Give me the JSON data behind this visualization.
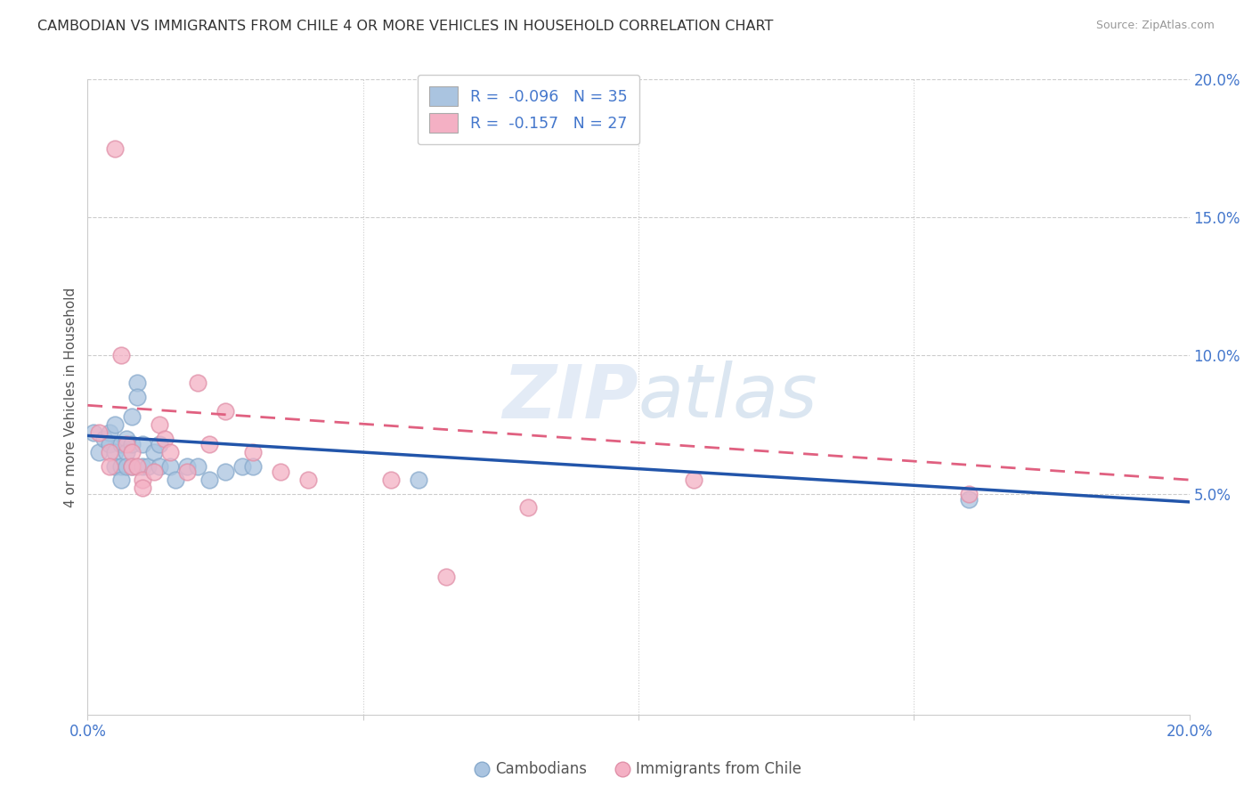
{
  "title": "CAMBODIAN VS IMMIGRANTS FROM CHILE 4 OR MORE VEHICLES IN HOUSEHOLD CORRELATION CHART",
  "source": "Source: ZipAtlas.com",
  "ylabel": "4 or more Vehicles in Household",
  "xlim": [
    0.0,
    0.2
  ],
  "ylim": [
    -0.03,
    0.2
  ],
  "xticks": [
    0.0,
    0.05,
    0.1,
    0.15,
    0.2
  ],
  "xticklabels": [
    "0.0%",
    "",
    "",
    "",
    "20.0%"
  ],
  "right_yticks": [
    0.05,
    0.1,
    0.15,
    0.2
  ],
  "right_yticklabels": [
    "5.0%",
    "10.0%",
    "15.0%",
    "20.0%"
  ],
  "watermark_line1": "ZIP",
  "watermark_line2": "atlas",
  "legend_r1": "R =  -0.096   N = 35",
  "legend_r2": "R =  -0.157   N = 27",
  "cambodian_color": "#aac4e0",
  "chile_color": "#f4b0c4",
  "cambodian_edge_color": "#88aacc",
  "chile_edge_color": "#e090a8",
  "cambodian_line_color": "#2255aa",
  "chile_line_color": "#e06080",
  "background_color": "#ffffff",
  "grid_color": "#cccccc",
  "tick_color": "#4477cc",
  "cambodian_x": [
    0.001,
    0.002,
    0.003,
    0.004,
    0.004,
    0.005,
    0.005,
    0.005,
    0.006,
    0.006,
    0.006,
    0.007,
    0.007,
    0.007,
    0.008,
    0.008,
    0.008,
    0.009,
    0.009,
    0.01,
    0.01,
    0.011,
    0.012,
    0.013,
    0.013,
    0.015,
    0.016,
    0.018,
    0.02,
    0.022,
    0.025,
    0.028,
    0.03,
    0.06,
    0.16
  ],
  "cambodian_y": [
    0.072,
    0.065,
    0.07,
    0.072,
    0.068,
    0.075,
    0.065,
    0.06,
    0.068,
    0.06,
    0.055,
    0.07,
    0.065,
    0.06,
    0.078,
    0.068,
    0.06,
    0.09,
    0.085,
    0.068,
    0.06,
    0.06,
    0.065,
    0.068,
    0.06,
    0.06,
    0.055,
    0.06,
    0.06,
    0.055,
    0.058,
    0.06,
    0.06,
    0.055,
    0.048
  ],
  "chile_x": [
    0.002,
    0.004,
    0.004,
    0.005,
    0.006,
    0.007,
    0.008,
    0.008,
    0.009,
    0.01,
    0.01,
    0.012,
    0.013,
    0.014,
    0.015,
    0.018,
    0.02,
    0.022,
    0.025,
    0.03,
    0.035,
    0.04,
    0.055,
    0.065,
    0.08,
    0.11,
    0.16
  ],
  "chile_y": [
    0.072,
    0.065,
    0.06,
    0.175,
    0.1,
    0.068,
    0.065,
    0.06,
    0.06,
    0.055,
    0.052,
    0.058,
    0.075,
    0.07,
    0.065,
    0.058,
    0.09,
    0.068,
    0.08,
    0.065,
    0.058,
    0.055,
    0.055,
    0.02,
    0.045,
    0.055,
    0.05
  ],
  "cambodian_line_x": [
    0.0,
    0.2
  ],
  "cambodian_line_y": [
    0.071,
    0.047
  ],
  "chile_line_x": [
    0.0,
    0.2
  ],
  "chile_line_y": [
    0.082,
    0.055
  ],
  "bottom_legend_labels": [
    "Cambodians",
    "Immigrants from Chile"
  ]
}
